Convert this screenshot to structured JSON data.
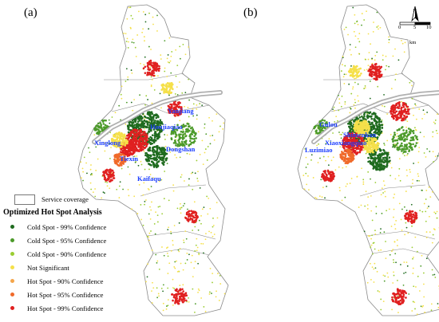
{
  "panels": [
    {
      "label": "(a)",
      "places": [
        "Yanjiang",
        "Houjiaqiao",
        "Xinglong",
        "Dongshan",
        "Tiexin",
        "Kaifaqu"
      ]
    },
    {
      "label": "(b)",
      "places": [
        "Gulou",
        "Shimenkan",
        "Xiaoxiangqiao",
        "Luzimiao"
      ]
    }
  ],
  "compass": {
    "north_label": "N",
    "icon": "north-arrow-icon"
  },
  "scale_bar": {
    "ticks": [
      "0",
      "5",
      "10"
    ],
    "unit": "km"
  },
  "legend": {
    "service_label": "Service coverage",
    "title": "Optimized Hot Spot Analysis",
    "items": [
      {
        "label": "Cold Spot - 99% Confidence",
        "color": "#1f6b1f"
      },
      {
        "label": "Cold Spot - 95% Confidence",
        "color": "#4c9a2a"
      },
      {
        "label": "Cold Spot - 90% Confidence",
        "color": "#9acd32"
      },
      {
        "label": "Not Significant",
        "color": "#f5e04a"
      },
      {
        "label": "Hot Spot - 90% Confidence",
        "color": "#f4a54a"
      },
      {
        "label": "Hot Spot - 95% Confidence",
        "color": "#f06a2a"
      },
      {
        "label": "Hot Spot - 99% Confidence",
        "color": "#e02020"
      }
    ]
  },
  "colors": {
    "river": "#b0b0b0",
    "boundary": "#8a8a8a"
  }
}
